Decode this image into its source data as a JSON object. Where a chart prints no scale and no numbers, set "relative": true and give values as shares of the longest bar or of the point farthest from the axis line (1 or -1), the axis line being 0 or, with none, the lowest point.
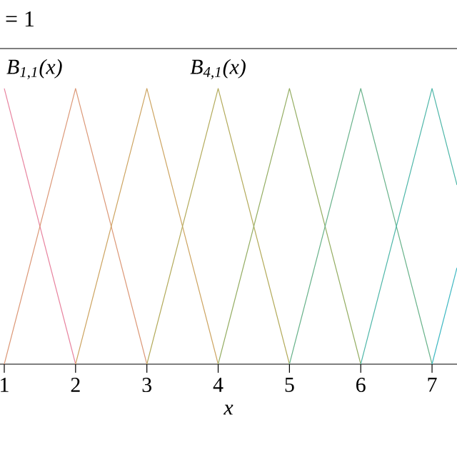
{
  "chart_data": {
    "type": "line",
    "title": "= 1",
    "xlabel": "x",
    "relative": true,
    "xlim": [
      0.94,
      7.35
    ],
    "xticks": [
      1,
      2,
      3,
      4,
      5,
      6,
      7
    ],
    "grid": false,
    "marker": "none",
    "line_style": "solid",
    "series": [
      {
        "color": "#e8839f",
        "x": [
          1,
          2
        ],
        "values": [
          1,
          0
        ]
      },
      {
        "color": "#dc9877",
        "x": [
          1,
          2,
          3
        ],
        "values": [
          0,
          1,
          0
        ]
      },
      {
        "color": "#cda461",
        "x": [
          2,
          3,
          4
        ],
        "values": [
          0,
          1,
          0
        ]
      },
      {
        "color": "#b3aa5a",
        "x": [
          3,
          4,
          5
        ],
        "values": [
          0,
          1,
          0
        ]
      },
      {
        "color": "#94ad62",
        "x": [
          4,
          5,
          6
        ],
        "values": [
          0,
          1,
          0
        ]
      },
      {
        "color": "#68b28a",
        "x": [
          5,
          6,
          7
        ],
        "values": [
          0,
          1,
          0
        ]
      },
      {
        "color": "#4db6a8",
        "x": [
          6,
          7,
          7.35
        ],
        "values": [
          0,
          1,
          0.65
        ]
      },
      {
        "color": "#3eb8c2",
        "x": [
          7,
          7.35
        ],
        "values": [
          0,
          0.35
        ]
      }
    ],
    "annotations": [
      {
        "text": "B$_{1,1}$(x)",
        "x": 1,
        "y": 1
      },
      {
        "text": "B$_{4,1}$(x)",
        "x": 4,
        "y": 1
      }
    ]
  }
}
